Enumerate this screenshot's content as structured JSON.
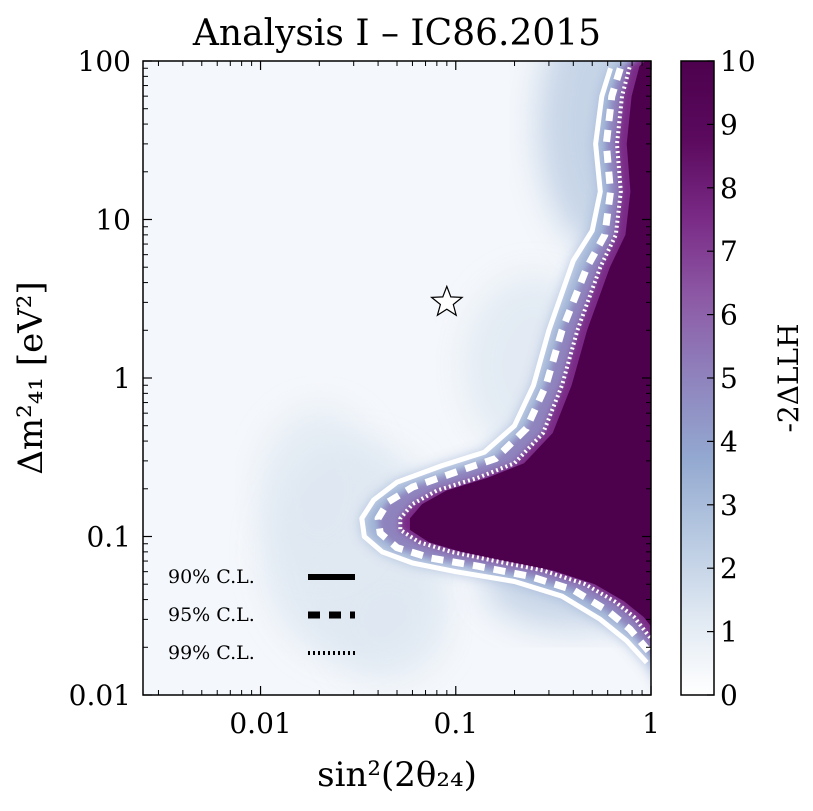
{
  "chart_data": {
    "type": "heatmap",
    "title": "Analysis I – IC86.2015",
    "xlabel": "sin²(2θ₂₄)",
    "ylabel": "Δm²₄₁ [eV²]",
    "xscale": "log",
    "yscale": "log",
    "xlim": [
      0.0025,
      1
    ],
    "ylim": [
      0.01,
      100
    ],
    "x_ticks": [
      0.01,
      0.1,
      1
    ],
    "x_tick_labels": [
      "0.01",
      "0.1",
      "1"
    ],
    "y_ticks": [
      0.01,
      0.1,
      1,
      10,
      100
    ],
    "y_tick_labels": [
      "0.01",
      "0.1",
      "1",
      "10",
      "100"
    ],
    "colorbar": {
      "label": "-2ΔLLH",
      "min": 0,
      "max": 10,
      "ticks": [
        0,
        1,
        2,
        3,
        4,
        5,
        6,
        7,
        8,
        9,
        10
      ],
      "tick_labels": [
        "0",
        "1",
        "2",
        "3",
        "4",
        "5",
        "6",
        "7",
        "8",
        "9",
        "10"
      ],
      "colors": [
        "#ffffff",
        "#dfe8f2",
        "#b7c9e1",
        "#93a8d0",
        "#8f83bd",
        "#8d5aa6",
        "#7a2b86",
        "#5b0a5e",
        "#4d014d"
      ]
    },
    "best_fit": {
      "x": 0.09,
      "y": 3.0,
      "marker": "star"
    },
    "contours": [
      {
        "name": "90% C.L.",
        "style": "solid",
        "points": [
          [
            0.95,
            0.016
          ],
          [
            0.75,
            0.022
          ],
          [
            0.55,
            0.03
          ],
          [
            0.35,
            0.042
          ],
          [
            0.2,
            0.052
          ],
          [
            0.1,
            0.06
          ],
          [
            0.06,
            0.068
          ],
          [
            0.042,
            0.08
          ],
          [
            0.034,
            0.1
          ],
          [
            0.033,
            0.13
          ],
          [
            0.038,
            0.17
          ],
          [
            0.05,
            0.22
          ],
          [
            0.085,
            0.28
          ],
          [
            0.14,
            0.34
          ],
          [
            0.2,
            0.5
          ],
          [
            0.25,
            0.9
          ],
          [
            0.3,
            2.0
          ],
          [
            0.4,
            5.5
          ],
          [
            0.5,
            8.5
          ],
          [
            0.55,
            15
          ],
          [
            0.52,
            30
          ],
          [
            0.56,
            60
          ],
          [
            0.62,
            90
          ]
        ]
      },
      {
        "name": "95% C.L.",
        "style": "dashed",
        "points": [
          [
            0.97,
            0.019
          ],
          [
            0.78,
            0.026
          ],
          [
            0.6,
            0.034
          ],
          [
            0.4,
            0.046
          ],
          [
            0.24,
            0.056
          ],
          [
            0.13,
            0.065
          ],
          [
            0.075,
            0.073
          ],
          [
            0.05,
            0.085
          ],
          [
            0.041,
            0.105
          ],
          [
            0.04,
            0.13
          ],
          [
            0.045,
            0.165
          ],
          [
            0.06,
            0.205
          ],
          [
            0.1,
            0.255
          ],
          [
            0.16,
            0.31
          ],
          [
            0.23,
            0.48
          ],
          [
            0.29,
            0.9
          ],
          [
            0.35,
            2.0
          ],
          [
            0.47,
            5.0
          ],
          [
            0.58,
            8.0
          ],
          [
            0.62,
            15
          ],
          [
            0.59,
            30
          ],
          [
            0.63,
            60
          ],
          [
            0.7,
            92
          ]
        ]
      },
      {
        "name": "99% C.L.",
        "style": "dotted",
        "points": [
          [
            0.99,
            0.023
          ],
          [
            0.82,
            0.031
          ],
          [
            0.65,
            0.039
          ],
          [
            0.46,
            0.05
          ],
          [
            0.28,
            0.061
          ],
          [
            0.16,
            0.07
          ],
          [
            0.095,
            0.08
          ],
          [
            0.065,
            0.092
          ],
          [
            0.052,
            0.11
          ],
          [
            0.052,
            0.13
          ],
          [
            0.06,
            0.16
          ],
          [
            0.08,
            0.195
          ],
          [
            0.13,
            0.235
          ],
          [
            0.2,
            0.29
          ],
          [
            0.28,
            0.45
          ],
          [
            0.35,
            0.9
          ],
          [
            0.42,
            2.0
          ],
          [
            0.55,
            5.0
          ],
          [
            0.66,
            8.0
          ],
          [
            0.7,
            15
          ],
          [
            0.67,
            30
          ],
          [
            0.71,
            60
          ],
          [
            0.78,
            93
          ]
        ]
      }
    ],
    "legend": {
      "position": "lower-left",
      "entries": [
        {
          "label": "90% C.L.",
          "style": "solid"
        },
        {
          "label": "95% C.L.",
          "style": "dashed"
        },
        {
          "label": "99% C.L.",
          "style": "dotted"
        }
      ]
    }
  }
}
